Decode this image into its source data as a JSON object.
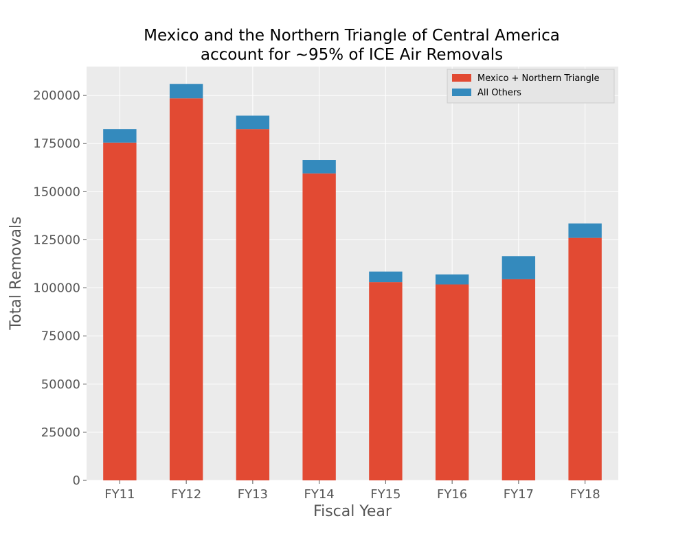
{
  "chart_data": {
    "type": "bar",
    "stacked": true,
    "title": "Mexico and the Northern Triangle of Central America account for ~95% of ICE Air Removals",
    "title_lines": [
      "Mexico and the Northern Triangle of Central America",
      "account for ~95% of ICE Air Removals"
    ],
    "xlabel": "Fiscal Year",
    "ylabel": "Total Removals",
    "categories": [
      "FY11",
      "FY12",
      "FY13",
      "FY14",
      "FY15",
      "FY16",
      "FY17",
      "FY18"
    ],
    "series": [
      {
        "name": "Mexico + Northern Triangle",
        "color": "#E24A33",
        "values": [
          175500,
          198500,
          182500,
          159500,
          103000,
          101800,
          104500,
          126000
        ]
      },
      {
        "name": "All Others",
        "color": "#348ABD",
        "values": [
          7000,
          7500,
          7000,
          7000,
          5500,
          5200,
          12000,
          7500
        ]
      }
    ],
    "ylim": [
      0,
      215000
    ],
    "yticks": [
      0,
      25000,
      50000,
      75000,
      100000,
      125000,
      150000,
      175000,
      200000
    ],
    "ytick_labels": [
      "0",
      "25000",
      "50000",
      "75000",
      "100000",
      "125000",
      "150000",
      "175000",
      "200000"
    ],
    "grid": true,
    "legend_position": "top-right",
    "background_color": "#EBEBEB",
    "grid_color": "#FFFFFF"
  }
}
